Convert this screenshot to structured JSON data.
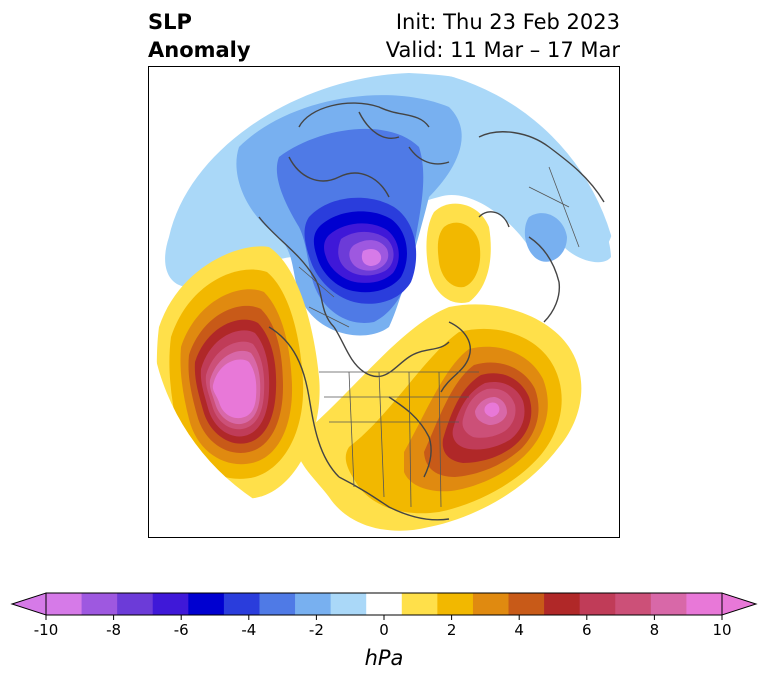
{
  "title": {
    "variable": "SLP",
    "kind": "Anomaly",
    "init": "Init: Thu 23 Feb 2023",
    "valid": "Valid: 11 Mar – 17 Mar"
  },
  "colorbar": {
    "units": "hPa",
    "min": -10,
    "max": 10,
    "tick_labels": [
      "-10",
      "-8",
      "-6",
      "-4",
      "-2",
      "0",
      "2",
      "4",
      "6",
      "8",
      "10"
    ],
    "tick_values": [
      -10,
      -8,
      -6,
      -4,
      -2,
      0,
      2,
      4,
      6,
      8,
      10
    ],
    "extend": "both",
    "levels": [
      -10,
      -9,
      -8,
      -7,
      -6,
      -5,
      -4,
      -3,
      -2,
      -1,
      1,
      2,
      3,
      4,
      5,
      6,
      7,
      8,
      9,
      10
    ],
    "colors": [
      "#d67ae8",
      "#9e58e0",
      "#6c3bd8",
      "#3f18d8",
      "#0000d0",
      "#2a3ddc",
      "#4f7ae6",
      "#78b0f0",
      "#aad8f8",
      "#ffffff",
      "#ffe04a",
      "#f2b800",
      "#e08a10",
      "#c85a18",
      "#b02828",
      "#c03c58",
      "#cc5078",
      "#d868a8",
      "#e878d8"
    ]
  },
  "anomalies": [
    {
      "name": "negative-anomaly-arctic-canada",
      "peak_hpa": -9
    },
    {
      "name": "positive-anomaly-north-pacific",
      "peak_hpa": 10
    },
    {
      "name": "positive-anomaly-north-atlantic",
      "peak_hpa": 9
    },
    {
      "name": "positive-anomaly-svalbard",
      "peak_hpa": 3
    },
    {
      "name": "negative-anomaly-siberia",
      "peak_hpa": -3
    }
  ]
}
